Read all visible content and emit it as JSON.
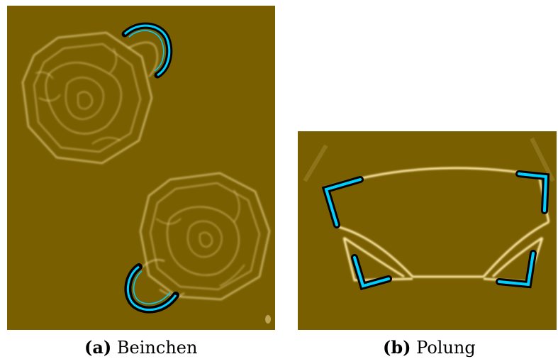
{
  "figure": {
    "background": "#ffffff",
    "image_background": "#7a5f00",
    "highlight_color": "#00d0ff",
    "structure_color": "#ffe9a8",
    "subfigures": [
      {
        "tag": "(a)",
        "label": "Beinchen"
      },
      {
        "tag": "(b)",
        "label": "Polung"
      }
    ]
  }
}
